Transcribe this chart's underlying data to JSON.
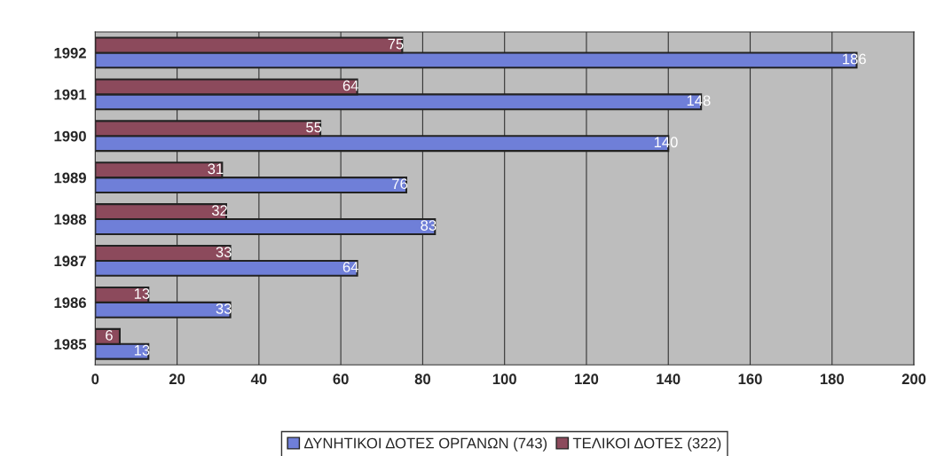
{
  "chart_data": {
    "type": "bar",
    "orientation": "horizontal",
    "categories": [
      "1992",
      "1991",
      "1990",
      "1989",
      "1988",
      "1987",
      "1986",
      "1985"
    ],
    "series": [
      {
        "name": "ΔΥΝΗΤΙΚΟΙ ΔΟΤΕΣ ΟΡΓΑΝΩΝ (743)",
        "color": "#6f7fd8",
        "values": [
          186,
          148,
          140,
          76,
          83,
          64,
          33,
          13
        ]
      },
      {
        "name": "ΤΕΛΙΚΟΙ ΔΟΤΕΣ (322)",
        "color": "#8c4a5c",
        "values": [
          75,
          64,
          55,
          31,
          32,
          33,
          13,
          6
        ]
      }
    ],
    "xlim": [
      0,
      200
    ],
    "xticks": [
      0,
      20,
      40,
      60,
      80,
      100,
      120,
      140,
      160,
      180,
      200
    ],
    "grid": "x",
    "legend": "bottom",
    "data_labels": true
  }
}
